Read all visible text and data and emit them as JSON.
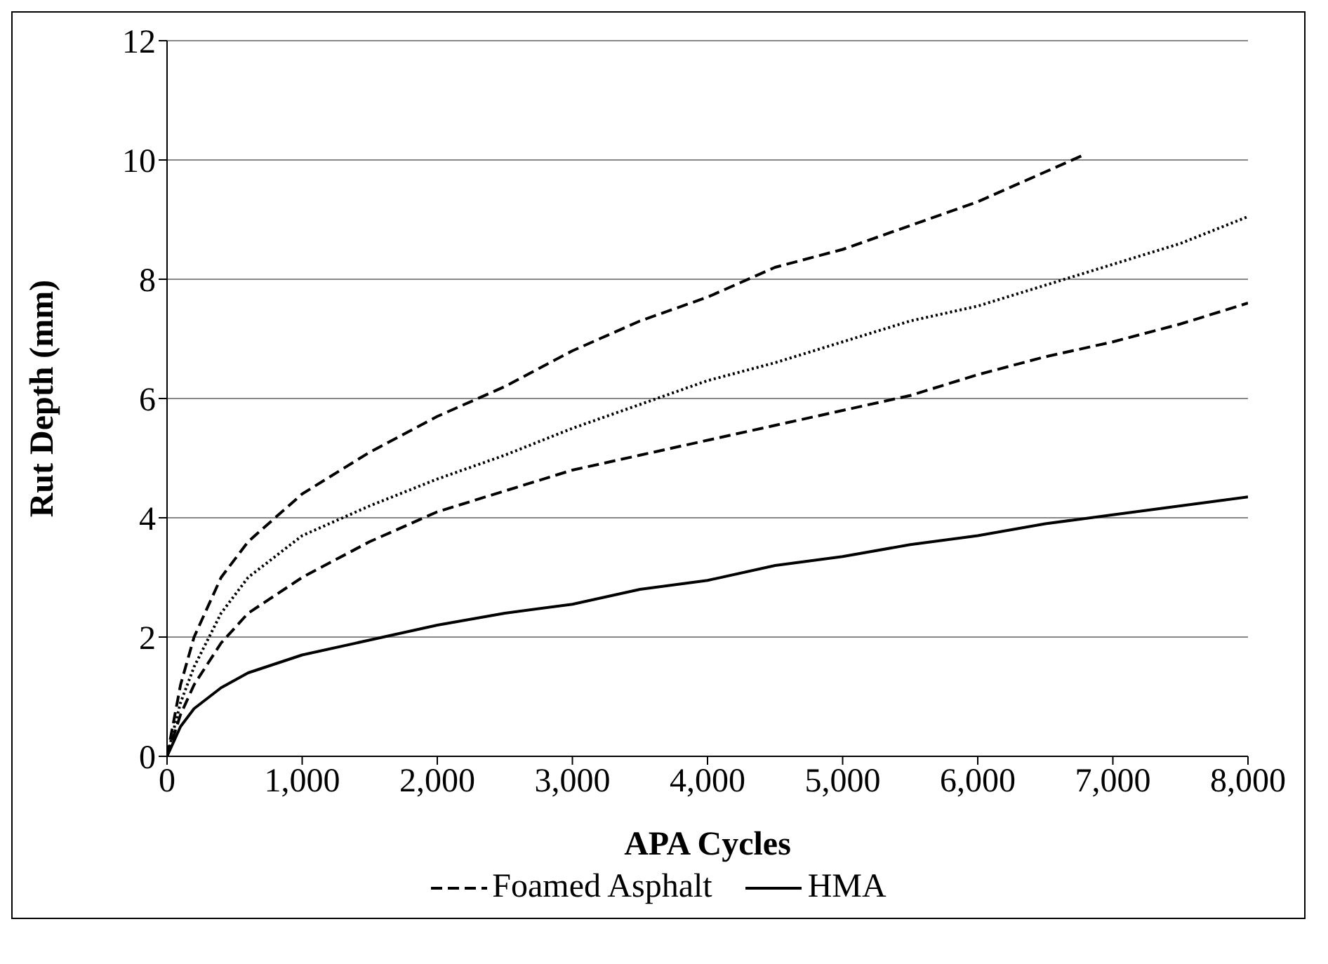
{
  "chart_data": {
    "type": "line",
    "xlabel": "APA Cycles",
    "ylabel": "Rut Depth (mm)",
    "xlim": [
      0,
      8000
    ],
    "xticks": [
      0,
      {
        "value": 1000,
        "label": "1,000"
      },
      {
        "value": 2000,
        "label": "2,000"
      },
      {
        "value": 3000,
        "label": "3,000"
      },
      {
        "value": 4000,
        "label": "4,000"
      },
      {
        "value": 5000,
        "label": "5,000"
      },
      {
        "value": 6000,
        "label": "6,000"
      },
      {
        "value": 7000,
        "label": "7,000"
      },
      {
        "value": 8000,
        "label": "8,000"
      }
    ],
    "ylim": [
      0,
      12
    ],
    "yticks": [
      0,
      2,
      4,
      6,
      8,
      10,
      12
    ],
    "grid": "y",
    "legend": "bottom",
    "marker": "none",
    "series": [
      {
        "color": "#000000",
        "line_style": "dotted",
        "x": [
          0,
          100,
          200,
          400,
          600,
          1000,
          1500,
          2000,
          2500,
          3000,
          3500,
          4000,
          4500,
          5000,
          5500,
          6000,
          6500,
          7000,
          7500,
          8000
        ],
        "values": [
          0,
          0.9,
          1.5,
          2.4,
          3.0,
          3.7,
          4.2,
          4.65,
          5.05,
          5.5,
          5.9,
          6.3,
          6.6,
          6.95,
          7.3,
          7.55,
          7.9,
          8.25,
          8.6,
          9.05
        ]
      },
      {
        "color": "#000000",
        "line_style": "dashed",
        "x": [
          0,
          100,
          200,
          400,
          600,
          1000,
          1500,
          2000,
          2500,
          3000,
          3500,
          4000,
          4500,
          5000,
          5500,
          6000,
          6500,
          7000,
          7500,
          8000
        ],
        "values": [
          0,
          0.7,
          1.2,
          1.9,
          2.4,
          3.0,
          3.6,
          4.1,
          4.45,
          4.8,
          5.05,
          5.3,
          5.55,
          5.8,
          6.05,
          6.4,
          6.7,
          6.95,
          7.25,
          7.6
        ]
      },
      {
        "name": "Foamed Asphalt",
        "color": "#000000",
        "line_style": "dashed",
        "x": [
          0,
          100,
          200,
          400,
          600,
          1000,
          1500,
          2000,
          2500,
          3000,
          3500,
          4000,
          4500,
          5000,
          5500,
          6000,
          6500,
          6800
        ],
        "values": [
          0,
          1.2,
          2.0,
          3.0,
          3.6,
          4.4,
          5.1,
          5.7,
          6.2,
          6.8,
          7.3,
          7.7,
          8.2,
          8.5,
          8.9,
          9.3,
          9.8,
          10.1
        ]
      },
      {
        "name": "HMA",
        "color": "#000000",
        "line_style": "solid",
        "x": [
          0,
          100,
          200,
          400,
          600,
          1000,
          1500,
          2000,
          2500,
          3000,
          3500,
          4000,
          4500,
          5000,
          5500,
          6000,
          6500,
          7000,
          7500,
          8000
        ],
        "values": [
          0,
          0.5,
          0.8,
          1.15,
          1.4,
          1.7,
          1.95,
          2.2,
          2.4,
          2.55,
          2.8,
          2.95,
          3.2,
          3.35,
          3.55,
          3.7,
          3.9,
          4.05,
          4.2,
          4.35
        ]
      }
    ]
  }
}
